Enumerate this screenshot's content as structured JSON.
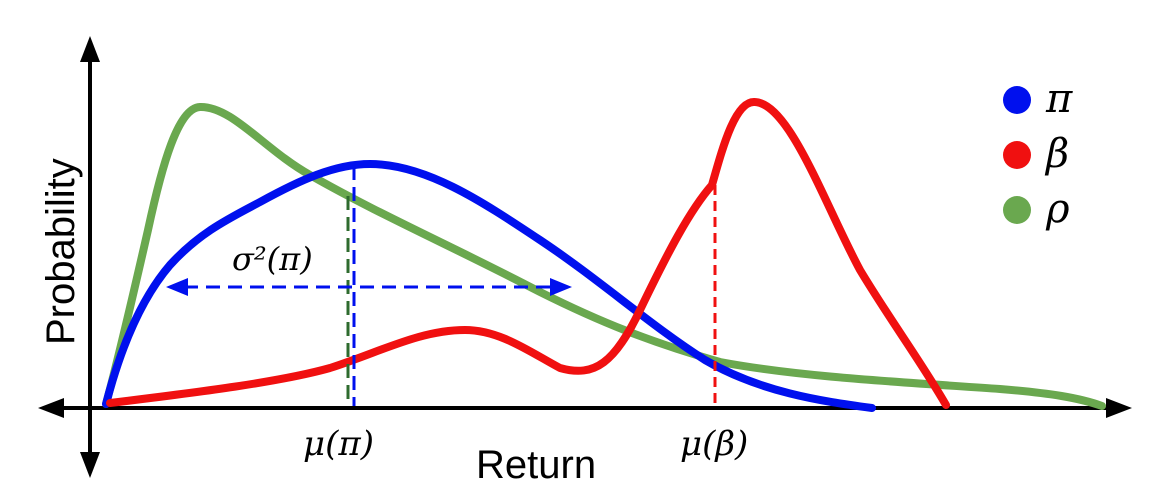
{
  "axes": {
    "x_label": "Return",
    "y_label": "Probability"
  },
  "legend": {
    "items": [
      {
        "symbol": "π",
        "color": "#0010ee"
      },
      {
        "symbol": "β",
        "color": "#f01010"
      },
      {
        "symbol": "ρ",
        "color": "#6aa84f"
      }
    ]
  },
  "annotations": {
    "mean_pi": "μ(π)",
    "mean_beta": "μ(β)",
    "variance_pi": "σ²(π)"
  },
  "colors": {
    "axis": "#000000",
    "pi": "#0010ee",
    "beta": "#f01010",
    "rho": "#6aa84f",
    "rho_mean_marker": "#2e6b2e"
  }
}
